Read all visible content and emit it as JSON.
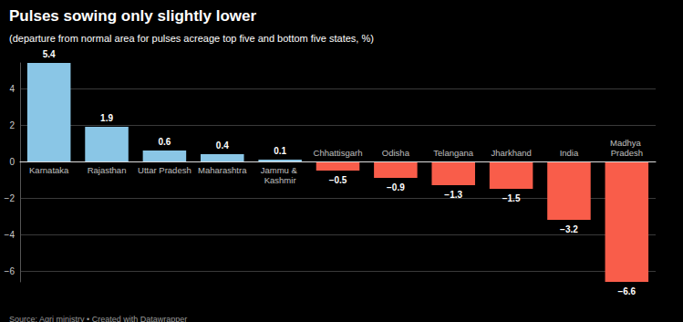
{
  "chart_data": {
    "type": "bar",
    "title": "Pulses sowing only slightly lower",
    "subtitle": "(departure from normal area for pulses acreage top five and bottom five states, %)",
    "source": "Source: Agri ministry • Created with Datawrapper",
    "categories": [
      "Karnataka",
      "Rajasthan",
      "Uttar Pradesh",
      "Maharashtra",
      "Jammu & Kashmir",
      "Chhattisgarh",
      "Odisha",
      "Telangana",
      "Jharkhand",
      "India",
      "Madhya Pradesh"
    ],
    "values": [
      5.4,
      1.9,
      0.6,
      0.4,
      0.1,
      -0.5,
      -0.9,
      -1.3,
      -1.5,
      -3.2,
      -6.6
    ],
    "value_labels": [
      "5.4",
      "1.9",
      "0.6",
      "0.4",
      "0.1",
      "−0.5",
      "−0.9",
      "−1.3",
      "−1.5",
      "−3.2",
      "−6.6"
    ],
    "colors": [
      "#8ac6e6",
      "#8ac6e6",
      "#8ac6e6",
      "#8ac6e6",
      "#8ac6e6",
      "#f95d4a",
      "#f95d4a",
      "#f95d4a",
      "#f95d4a",
      "#f95d4a",
      "#f95d4a"
    ],
    "ylim": [
      -6.6,
      5.4
    ],
    "yticks": [
      {
        "value": -6,
        "label": "−6"
      },
      {
        "value": -4,
        "label": "−4"
      },
      {
        "value": -2,
        "label": "−2"
      },
      0,
      2,
      4
    ],
    "grid": true,
    "data_labels": true
  }
}
